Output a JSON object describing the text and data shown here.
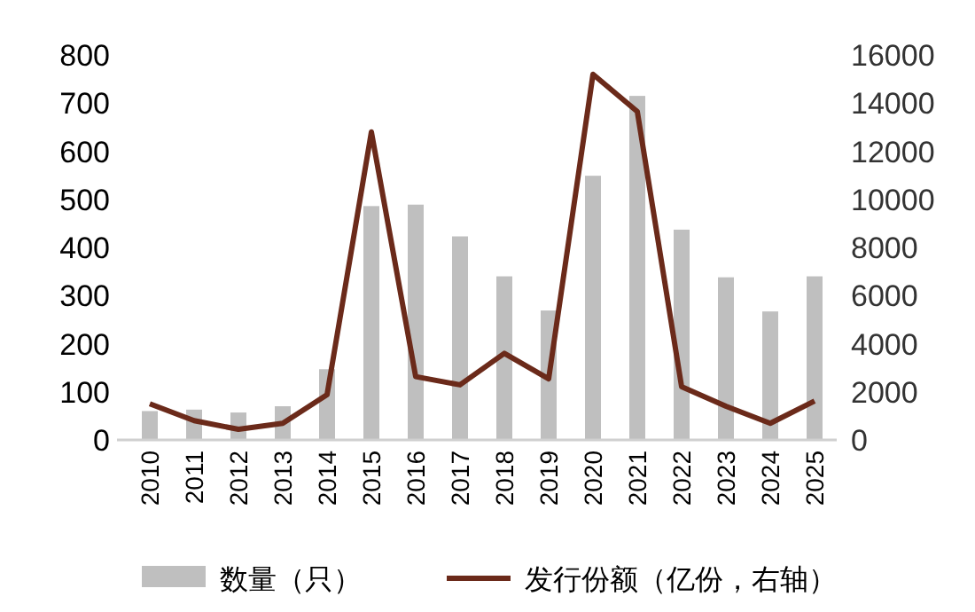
{
  "chart_data": {
    "type": "bar",
    "categories": [
      "2010",
      "2011",
      "2012",
      "2013",
      "2014",
      "2015",
      "2016",
      "2017",
      "2018",
      "2019",
      "2020",
      "2021",
      "2022",
      "2023",
      "2024",
      "2025"
    ],
    "series": [
      {
        "name": "数量（只）",
        "color": "#bfbfbf",
        "values": [
          60,
          63,
          57,
          70,
          147,
          486,
          489,
          423,
          340,
          269,
          549,
          715,
          437,
          338,
          267,
          340
        ]
      },
      {
        "name": "发行份额（亿份，右轴）",
        "type": "line",
        "axis": "y2",
        "color": "#6b2a1a",
        "values": [
          1500,
          800,
          440,
          690,
          1880,
          12800,
          2630,
          2290,
          3600,
          2540,
          15200,
          13650,
          2210,
          1400,
          690,
          1620
        ]
      }
    ],
    "ylim": [
      0,
      800
    ],
    "yticks": [
      0,
      100,
      200,
      300,
      400,
      500,
      600,
      700,
      800
    ],
    "y2lim": [
      0,
      16000
    ],
    "y2ticks": [
      0,
      2000,
      4000,
      6000,
      8000,
      10000,
      12000,
      14000,
      16000
    ],
    "legend": "bottom",
    "grid": false,
    "marker": "none",
    "line_style": "solid"
  }
}
